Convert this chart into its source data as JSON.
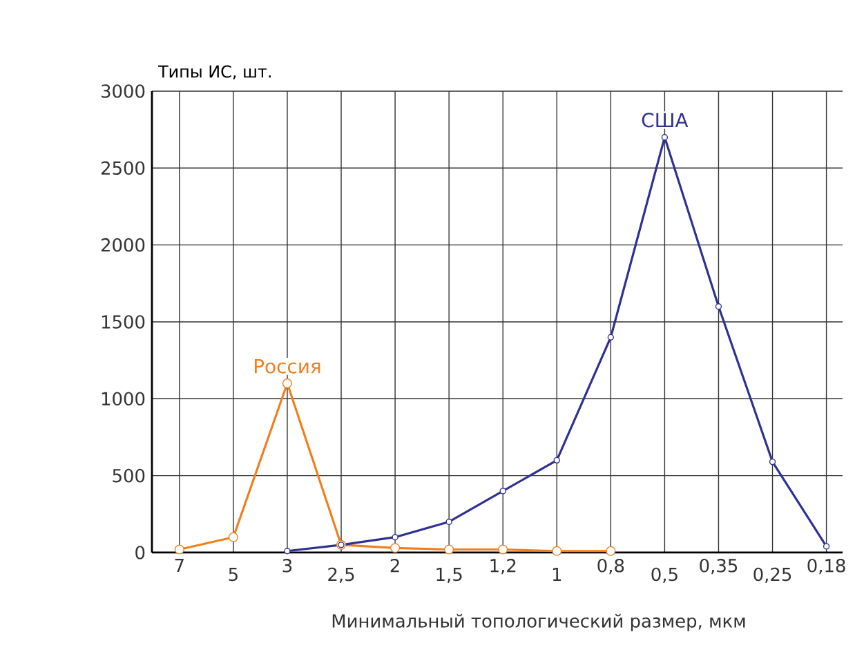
{
  "chart_data": {
    "type": "line",
    "xlabel": "Минимальный топологический размер, мкм",
    "ylabel": "Типы ИС, шт.",
    "categories": [
      "7",
      "5",
      "3",
      "2,5",
      "2",
      "1,5",
      "1,2",
      "1",
      "0,8",
      "0,5",
      "0,35",
      "0,25",
      "0,18"
    ],
    "series": [
      {
        "name": "Россия",
        "color": "#f07f1e",
        "values": [
          20,
          100,
          1100,
          50,
          30,
          20,
          20,
          10,
          10,
          null,
          null,
          null,
          null
        ]
      },
      {
        "name": "США",
        "color": "#2e3192",
        "values": [
          null,
          null,
          10,
          50,
          100,
          200,
          400,
          600,
          1400,
          2700,
          1600,
          590,
          40
        ]
      }
    ],
    "ylim": [
      0,
      3000
    ],
    "yticks": [
      0,
      500,
      1000,
      1500,
      2000,
      2500,
      3000
    ],
    "grid": true,
    "marker": "circle",
    "line_style": "solid"
  }
}
